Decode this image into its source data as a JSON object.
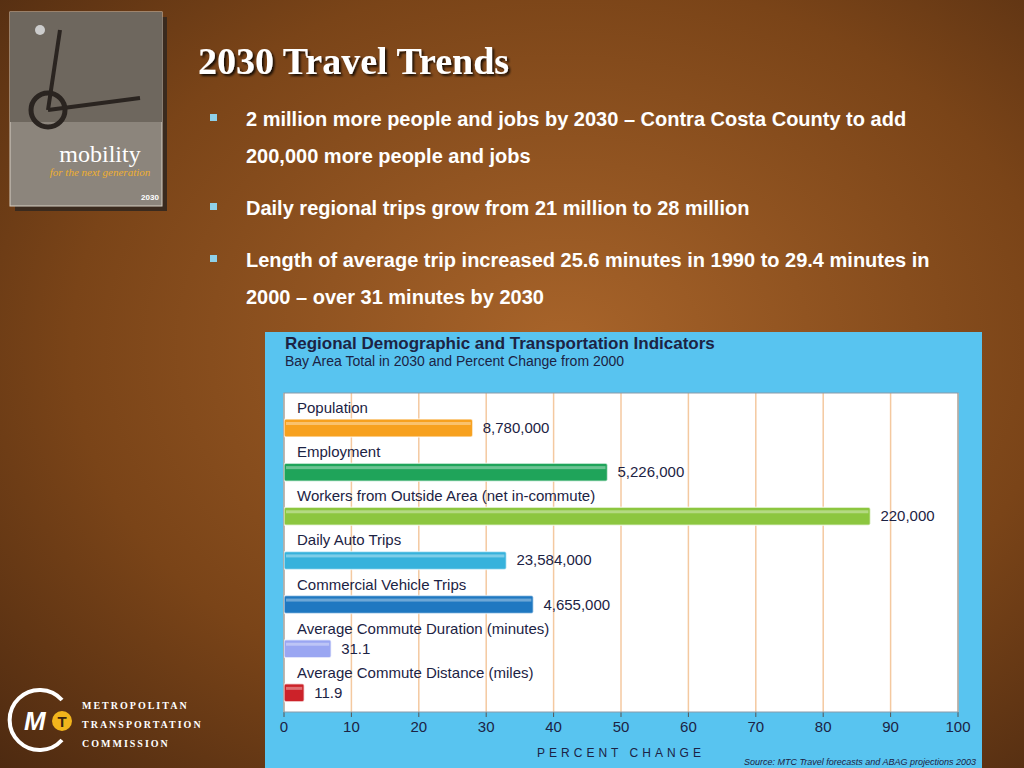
{
  "slide": {
    "title": "2030 Travel Trends",
    "bullets": [
      "2 million more people and jobs by 2030 – Contra Costa County to add 200,000 more people and jobs",
      "Daily regional trips grow from 21 million to 28 million",
      "Length of average trip increased 25.6 minutes in 1990 to 29.4 minutes in 2000 – over 31 minutes by 2030"
    ],
    "cover": {
      "title": "mobility",
      "subtitle": "for the next generation",
      "year": "2030"
    },
    "logo": {
      "mark": [
        "M",
        "T"
      ],
      "lines": [
        "METROPOLITAN",
        "TRANSPORTATION",
        "COMMISSION"
      ]
    }
  },
  "chart_data": {
    "type": "bar",
    "orientation": "horizontal",
    "title": "Regional Demographic and Transportation Indicators",
    "subtitle": "Bay Area Total in 2030 and Percent Change from 2000",
    "categories": [
      "Population",
      "Employment",
      "Workers from Outside Area (net in-commute)",
      "Daily Auto Trips",
      "Commercial Vehicle Trips",
      "Average Commute Duration (minutes)",
      "Average Commute Distance (miles)"
    ],
    "values": [
      28,
      48,
      87,
      33,
      37,
      7,
      3
    ],
    "bar_labels": [
      "8,780,000",
      "5,226,000",
      "220,000",
      "23,584,000",
      "4,655,000",
      "31.1",
      "11.9"
    ],
    "colors": [
      "#f7a11f",
      "#1fa45a",
      "#8cc63f",
      "#36b2dc",
      "#1f78c1",
      "#9aa6f2",
      "#cc2229"
    ],
    "xlabel": "PERCENT CHANGE",
    "xlim": [
      0,
      100
    ],
    "xticks": [
      0,
      10,
      20,
      30,
      40,
      50,
      60,
      70,
      80,
      90,
      100
    ],
    "grid": true,
    "tick_labels": "x",
    "source": "Source: MTC Travel forecasts and ABAG projections 2003"
  }
}
